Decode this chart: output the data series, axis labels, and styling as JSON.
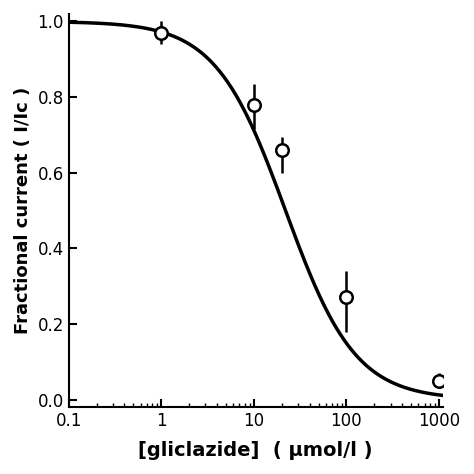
{
  "data_points_x": [
    1,
    10,
    20,
    100,
    1000
  ],
  "data_points_y": [
    0.97,
    0.78,
    0.66,
    0.27,
    0.05
  ],
  "error_bars_upper": [
    0.03,
    0.055,
    0.035,
    0.07,
    0.02
  ],
  "error_bars_lower": [
    0.03,
    0.065,
    0.06,
    0.09,
    0.02
  ],
  "IC50": 22,
  "hill_coeff": 1.15,
  "xmin": 0.1,
  "xmax": 1100,
  "ymin": -0.02,
  "ymax": 1.02,
  "xlabel": "[gliclazide]  ( μmol/l )",
  "ylabel": "Fractional current ( I/Iᴄ )",
  "curve_color": "#000000",
  "marker_color": "white",
  "marker_edge_color": "#000000",
  "errorbar_color": "#000000",
  "marker_size": 9,
  "linewidth": 2.5,
  "xlabel_fontsize": 14,
  "ylabel_fontsize": 13,
  "tick_fontsize": 12,
  "yticks": [
    0.0,
    0.2,
    0.4,
    0.6,
    0.8,
    1.0
  ],
  "figsize": [
    4.74,
    4.74
  ],
  "dpi": 100
}
